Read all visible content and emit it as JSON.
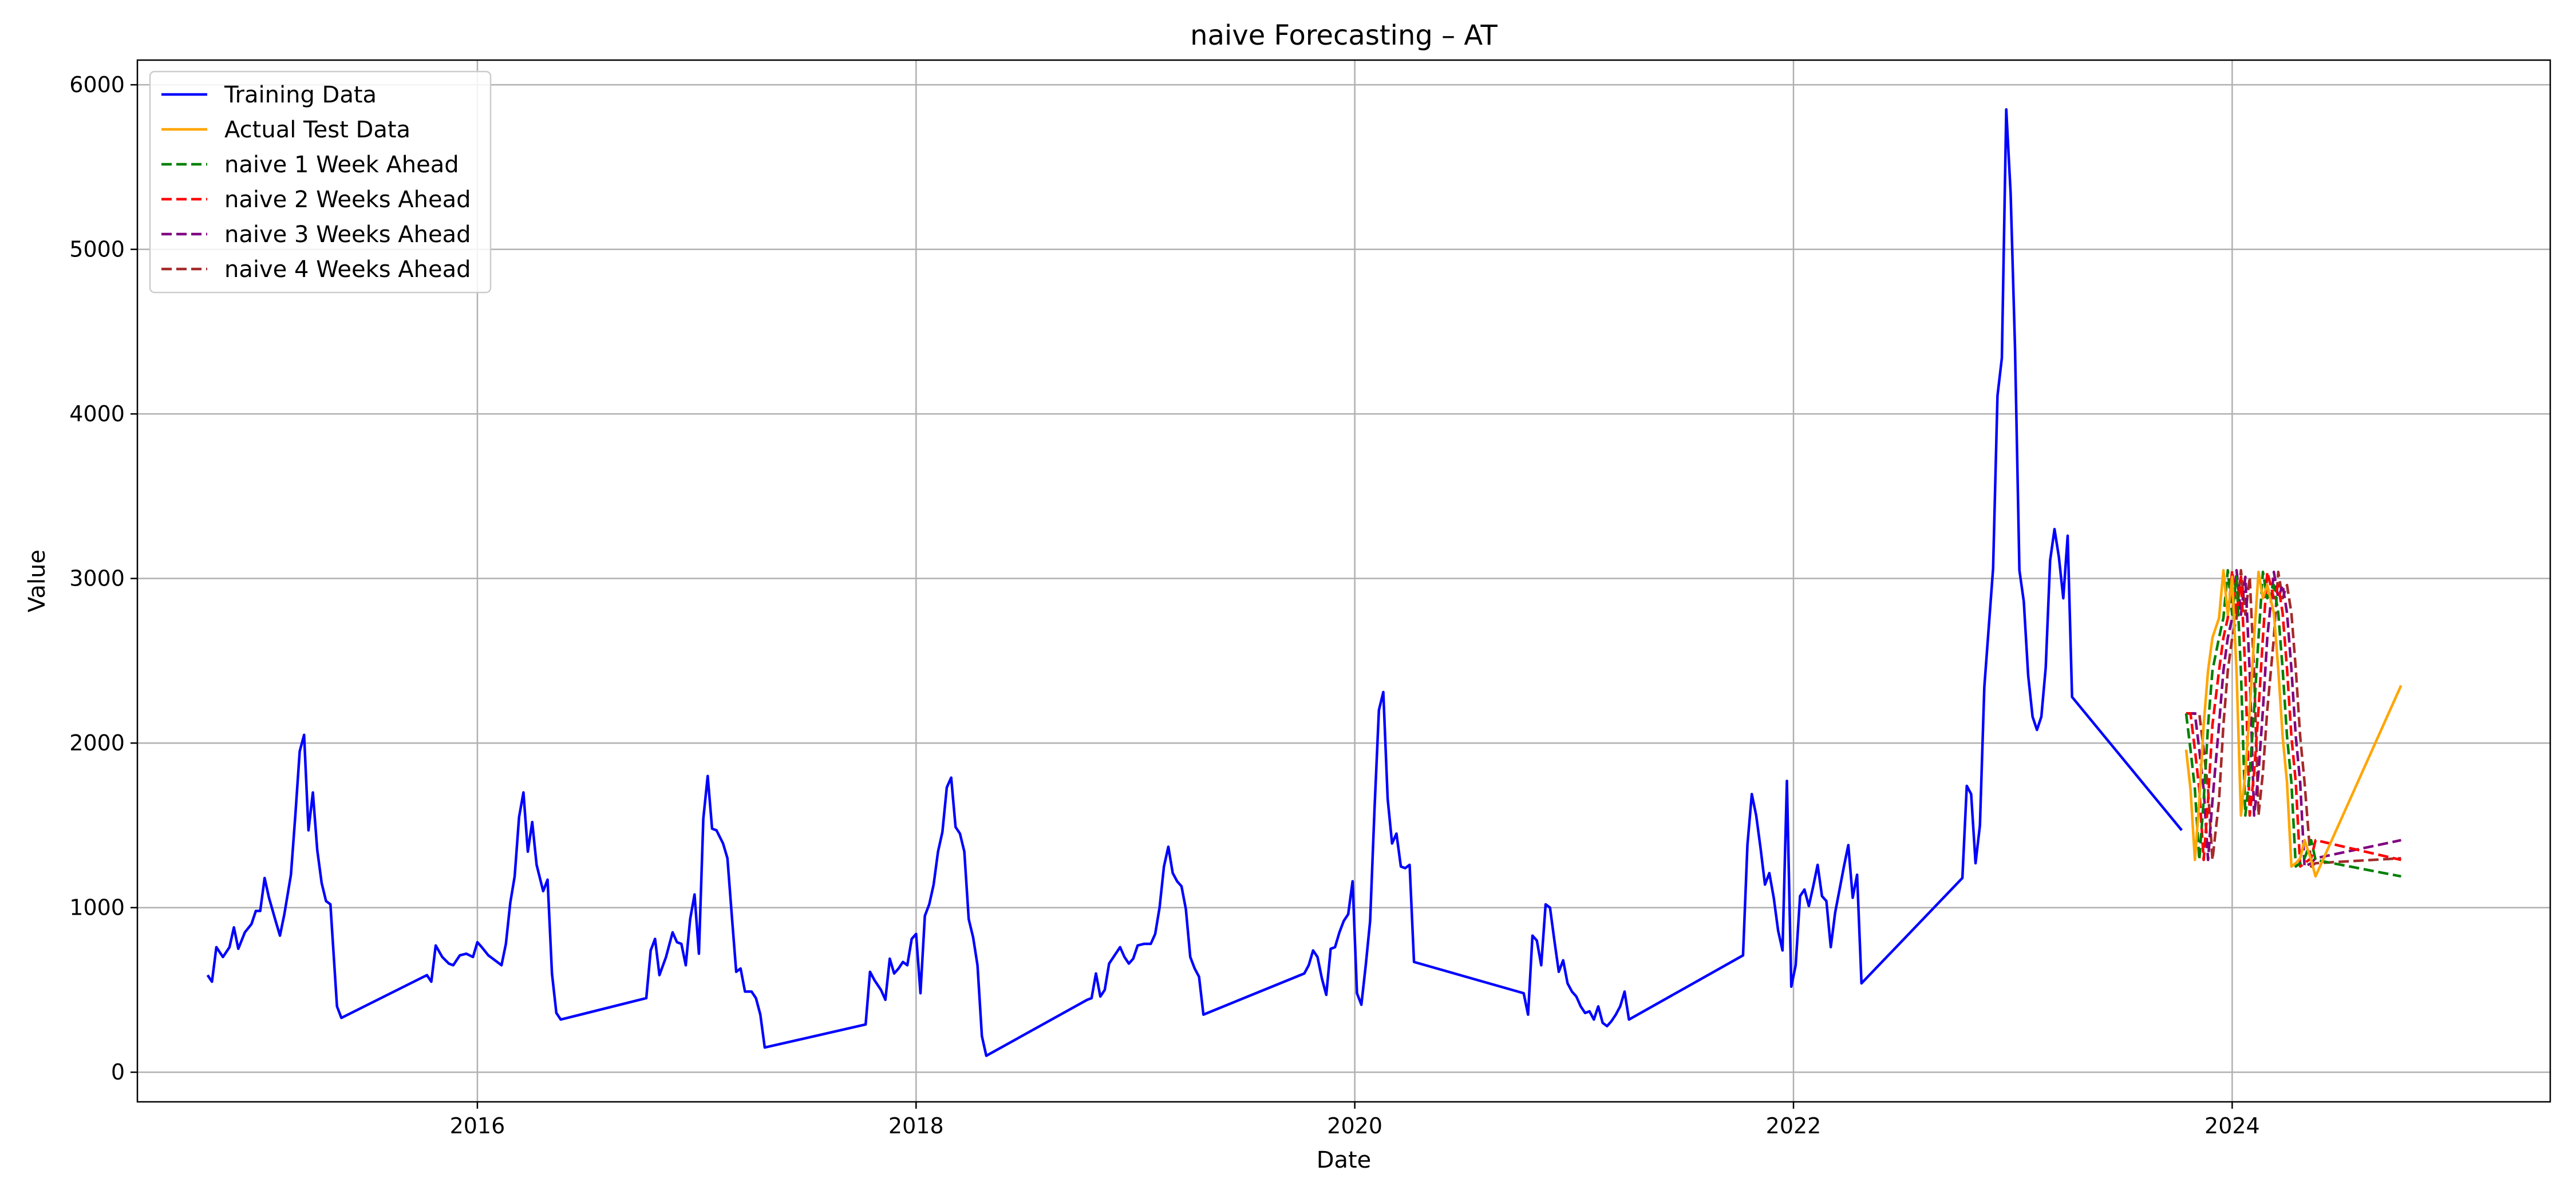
{
  "chart_data": {
    "type": "line",
    "title": "naive Forecasting – AT",
    "xlabel": "Date",
    "ylabel": "Value",
    "xlim": [
      2014.45,
      2025.45
    ],
    "ylim": [
      -180,
      6150
    ],
    "x_ticks": [
      2016,
      2018,
      2020,
      2022,
      2024
    ],
    "x_tick_labels": [
      "2016",
      "2018",
      "2020",
      "2022",
      "2024"
    ],
    "y_ticks": [
      0,
      1000,
      2000,
      3000,
      4000,
      5000,
      6000
    ],
    "y_tick_labels": [
      "0",
      "1000",
      "2000",
      "3000",
      "4000",
      "5000",
      "6000"
    ],
    "grid": true,
    "legend_position": "upper-left",
    "colors": {
      "training": "#0000ff",
      "actual": "#ffa500",
      "w1": "#008000",
      "w2": "#ff0000",
      "w3": "#800080",
      "w4": "#a52a2a"
    },
    "legend": [
      {
        "label": "Training Data",
        "color": "#0000ff",
        "dashed": false
      },
      {
        "label": "Actual Test Data",
        "color": "#ffa500",
        "dashed": false
      },
      {
        "label": "naive 1 Week Ahead",
        "color": "#008000",
        "dashed": true
      },
      {
        "label": "naive 2 Weeks Ahead",
        "color": "#ff0000",
        "dashed": true
      },
      {
        "label": "naive 3 Weeks Ahead",
        "color": "#800080",
        "dashed": true
      },
      {
        "label": "naive 4 Weeks Ahead",
        "color": "#a52a2a",
        "dashed": true
      }
    ],
    "training": {
      "name": "Training Data",
      "points": [
        [
          2014.77,
          590
        ],
        [
          2014.79,
          550
        ],
        [
          2014.81,
          760
        ],
        [
          2014.84,
          700
        ],
        [
          2014.87,
          760
        ],
        [
          2014.89,
          880
        ],
        [
          2014.91,
          750
        ],
        [
          2014.94,
          850
        ],
        [
          2014.97,
          900
        ],
        [
          2014.99,
          980
        ],
        [
          2015.01,
          980
        ],
        [
          2015.03,
          1180
        ],
        [
          2015.05,
          1060
        ],
        [
          2015.08,
          920
        ],
        [
          2015.1,
          830
        ],
        [
          2015.12,
          960
        ],
        [
          2015.15,
          1200
        ],
        [
          2015.17,
          1560
        ],
        [
          2015.19,
          1950
        ],
        [
          2015.21,
          2050
        ],
        [
          2015.23,
          1470
        ],
        [
          2015.25,
          1700
        ],
        [
          2015.27,
          1350
        ],
        [
          2015.29,
          1150
        ],
        [
          2015.31,
          1040
        ],
        [
          2015.33,
          1020
        ],
        [
          2015.36,
          400
        ],
        [
          2015.38,
          330
        ],
        [
          2015.77,
          590
        ],
        [
          2015.79,
          550
        ],
        [
          2015.81,
          770
        ],
        [
          2015.84,
          700
        ],
        [
          2015.87,
          660
        ],
        [
          2015.89,
          650
        ],
        [
          2015.92,
          710
        ],
        [
          2015.95,
          720
        ],
        [
          2015.98,
          700
        ],
        [
          2016.0,
          790
        ],
        [
          2016.02,
          760
        ],
        [
          2016.05,
          710
        ],
        [
          2016.08,
          680
        ],
        [
          2016.11,
          650
        ],
        [
          2016.13,
          780
        ],
        [
          2016.15,
          1030
        ],
        [
          2016.17,
          1190
        ],
        [
          2016.19,
          1550
        ],
        [
          2016.21,
          1700
        ],
        [
          2016.23,
          1340
        ],
        [
          2016.25,
          1520
        ],
        [
          2016.27,
          1260
        ],
        [
          2016.3,
          1100
        ],
        [
          2016.32,
          1170
        ],
        [
          2016.34,
          600
        ],
        [
          2016.36,
          360
        ],
        [
          2016.38,
          320
        ],
        [
          2016.77,
          450
        ],
        [
          2016.79,
          740
        ],
        [
          2016.81,
          810
        ],
        [
          2016.83,
          590
        ],
        [
          2016.86,
          700
        ],
        [
          2016.89,
          850
        ],
        [
          2016.91,
          790
        ],
        [
          2016.93,
          780
        ],
        [
          2016.95,
          650
        ],
        [
          2016.97,
          930
        ],
        [
          2016.99,
          1080
        ],
        [
          2017.01,
          720
        ],
        [
          2017.03,
          1540
        ],
        [
          2017.05,
          1800
        ],
        [
          2017.07,
          1480
        ],
        [
          2017.09,
          1470
        ],
        [
          2017.12,
          1390
        ],
        [
          2017.14,
          1300
        ],
        [
          2017.16,
          950
        ],
        [
          2017.18,
          610
        ],
        [
          2017.2,
          630
        ],
        [
          2017.22,
          490
        ],
        [
          2017.25,
          490
        ],
        [
          2017.27,
          450
        ],
        [
          2017.29,
          350
        ],
        [
          2017.31,
          150
        ],
        [
          2017.77,
          290
        ],
        [
          2017.79,
          610
        ],
        [
          2017.81,
          560
        ],
        [
          2017.84,
          500
        ],
        [
          2017.86,
          440
        ],
        [
          2017.88,
          690
        ],
        [
          2017.9,
          600
        ],
        [
          2017.92,
          630
        ],
        [
          2017.94,
          670
        ],
        [
          2017.96,
          650
        ],
        [
          2017.98,
          810
        ],
        [
          2018.0,
          840
        ],
        [
          2018.02,
          480
        ],
        [
          2018.04,
          950
        ],
        [
          2018.06,
          1020
        ],
        [
          2018.08,
          1140
        ],
        [
          2018.1,
          1340
        ],
        [
          2018.12,
          1460
        ],
        [
          2018.14,
          1730
        ],
        [
          2018.16,
          1790
        ],
        [
          2018.18,
          1490
        ],
        [
          2018.2,
          1450
        ],
        [
          2018.22,
          1340
        ],
        [
          2018.24,
          930
        ],
        [
          2018.26,
          820
        ],
        [
          2018.28,
          650
        ],
        [
          2018.3,
          220
        ],
        [
          2018.32,
          100
        ],
        [
          2018.78,
          440
        ],
        [
          2018.8,
          450
        ],
        [
          2018.82,
          600
        ],
        [
          2018.84,
          460
        ],
        [
          2018.86,
          500
        ],
        [
          2018.88,
          660
        ],
        [
          2018.91,
          720
        ],
        [
          2018.93,
          760
        ],
        [
          2018.95,
          700
        ],
        [
          2018.97,
          660
        ],
        [
          2018.99,
          690
        ],
        [
          2019.01,
          770
        ],
        [
          2019.04,
          780
        ],
        [
          2019.07,
          780
        ],
        [
          2019.09,
          840
        ],
        [
          2019.11,
          1000
        ],
        [
          2019.13,
          1250
        ],
        [
          2019.15,
          1370
        ],
        [
          2019.17,
          1210
        ],
        [
          2019.19,
          1160
        ],
        [
          2019.21,
          1130
        ],
        [
          2019.23,
          990
        ],
        [
          2019.25,
          700
        ],
        [
          2019.27,
          630
        ],
        [
          2019.29,
          580
        ],
        [
          2019.31,
          350
        ],
        [
          2019.77,
          600
        ],
        [
          2019.79,
          650
        ],
        [
          2019.81,
          740
        ],
        [
          2019.83,
          700
        ],
        [
          2019.85,
          570
        ],
        [
          2019.87,
          470
        ],
        [
          2019.89,
          750
        ],
        [
          2019.91,
          760
        ],
        [
          2019.93,
          850
        ],
        [
          2019.95,
          920
        ],
        [
          2019.97,
          960
        ],
        [
          2019.99,
          1160
        ],
        [
          2020.01,
          480
        ],
        [
          2020.03,
          410
        ],
        [
          2020.05,
          650
        ],
        [
          2020.07,
          920
        ],
        [
          2020.09,
          1600
        ],
        [
          2020.11,
          2200
        ],
        [
          2020.13,
          2310
        ],
        [
          2020.15,
          1660
        ],
        [
          2020.17,
          1390
        ],
        [
          2020.19,
          1450
        ],
        [
          2020.21,
          1250
        ],
        [
          2020.23,
          1240
        ],
        [
          2020.25,
          1260
        ],
        [
          2020.27,
          670
        ],
        [
          2020.77,
          480
        ],
        [
          2020.79,
          350
        ],
        [
          2020.81,
          830
        ],
        [
          2020.83,
          800
        ],
        [
          2020.85,
          650
        ],
        [
          2020.87,
          1020
        ],
        [
          2020.89,
          1000
        ],
        [
          2020.91,
          800
        ],
        [
          2020.93,
          610
        ],
        [
          2020.95,
          680
        ],
        [
          2020.97,
          540
        ],
        [
          2020.99,
          490
        ],
        [
          2021.01,
          460
        ],
        [
          2021.03,
          400
        ],
        [
          2021.05,
          360
        ],
        [
          2021.07,
          370
        ],
        [
          2021.09,
          320
        ],
        [
          2021.11,
          400
        ],
        [
          2021.13,
          300
        ],
        [
          2021.15,
          280
        ],
        [
          2021.17,
          310
        ],
        [
          2021.19,
          350
        ],
        [
          2021.21,
          400
        ],
        [
          2021.23,
          490
        ],
        [
          2021.25,
          320
        ],
        [
          2021.77,
          710
        ],
        [
          2021.79,
          1380
        ],
        [
          2021.81,
          1690
        ],
        [
          2021.83,
          1560
        ],
        [
          2021.85,
          1360
        ],
        [
          2021.87,
          1140
        ],
        [
          2021.89,
          1210
        ],
        [
          2021.91,
          1060
        ],
        [
          2021.93,
          860
        ],
        [
          2021.95,
          740
        ],
        [
          2021.97,
          1770
        ],
        [
          2021.99,
          520
        ],
        [
          2022.01,
          650
        ],
        [
          2022.03,
          1070
        ],
        [
          2022.05,
          1110
        ],
        [
          2022.07,
          1010
        ],
        [
          2022.09,
          1130
        ],
        [
          2022.11,
          1260
        ],
        [
          2022.13,
          1070
        ],
        [
          2022.15,
          1040
        ],
        [
          2022.17,
          760
        ],
        [
          2022.19,
          970
        ],
        [
          2022.21,
          1110
        ],
        [
          2022.23,
          1250
        ],
        [
          2022.25,
          1380
        ],
        [
          2022.27,
          1060
        ],
        [
          2022.29,
          1200
        ],
        [
          2022.31,
          540
        ],
        [
          2022.77,
          1180
        ],
        [
          2022.79,
          1740
        ],
        [
          2022.81,
          1690
        ],
        [
          2022.83,
          1270
        ],
        [
          2022.85,
          1500
        ],
        [
          2022.87,
          2340
        ],
        [
          2022.89,
          2700
        ],
        [
          2022.91,
          3060
        ],
        [
          2022.93,
          4110
        ],
        [
          2022.95,
          4340
        ],
        [
          2022.97,
          5850
        ],
        [
          2022.99,
          5340
        ],
        [
          2023.01,
          4400
        ],
        [
          2023.03,
          3050
        ],
        [
          2023.05,
          2860
        ],
        [
          2023.07,
          2410
        ],
        [
          2023.09,
          2160
        ],
        [
          2023.11,
          2080
        ],
        [
          2023.13,
          2160
        ],
        [
          2023.15,
          2460
        ],
        [
          2023.17,
          3110
        ],
        [
          2023.19,
          3300
        ],
        [
          2023.21,
          3130
        ],
        [
          2023.23,
          2880
        ],
        [
          2023.25,
          3260
        ],
        [
          2023.27,
          2280
        ],
        [
          2023.77,
          1470
        ]
      ]
    },
    "actual": {
      "name": "Actual Test Data",
      "points": [
        [
          2023.79,
          1960
        ],
        [
          2023.81,
          1720
        ],
        [
          2023.83,
          1290
        ],
        [
          2023.85,
          1650
        ],
        [
          2023.87,
          2110
        ],
        [
          2023.89,
          2440
        ],
        [
          2023.91,
          2640
        ],
        [
          2023.94,
          2760
        ],
        [
          2023.96,
          3050
        ],
        [
          2023.98,
          2780
        ],
        [
          2024.0,
          3010
        ],
        [
          2024.02,
          2430
        ],
        [
          2024.04,
          1560
        ],
        [
          2024.06,
          1820
        ],
        [
          2024.08,
          2200
        ],
        [
          2024.1,
          2640
        ],
        [
          2024.12,
          3040
        ],
        [
          2024.14,
          2880
        ],
        [
          2024.16,
          2960
        ],
        [
          2024.19,
          2790
        ],
        [
          2024.21,
          2450
        ],
        [
          2024.23,
          2040
        ],
        [
          2024.25,
          1760
        ],
        [
          2024.27,
          1250
        ],
        [
          2024.29,
          1270
        ],
        [
          2024.31,
          1300
        ],
        [
          2024.33,
          1410
        ],
        [
          2024.36,
          1290
        ],
        [
          2024.38,
          1190
        ],
        [
          2024.77,
          2350
        ]
      ]
    },
    "forecasts": [
      {
        "name": "naive 1 Week Ahead",
        "color_key": "w1",
        "lag": 1
      },
      {
        "name": "naive 2 Weeks Ahead",
        "color_key": "w2",
        "lag": 2
      },
      {
        "name": "naive 3 Weeks Ahead",
        "color_key": "w3",
        "lag": 3
      },
      {
        "name": "naive 4 Weeks Ahead",
        "color_key": "w4",
        "lag": 4
      }
    ],
    "forecast_start_value": 2180
  }
}
